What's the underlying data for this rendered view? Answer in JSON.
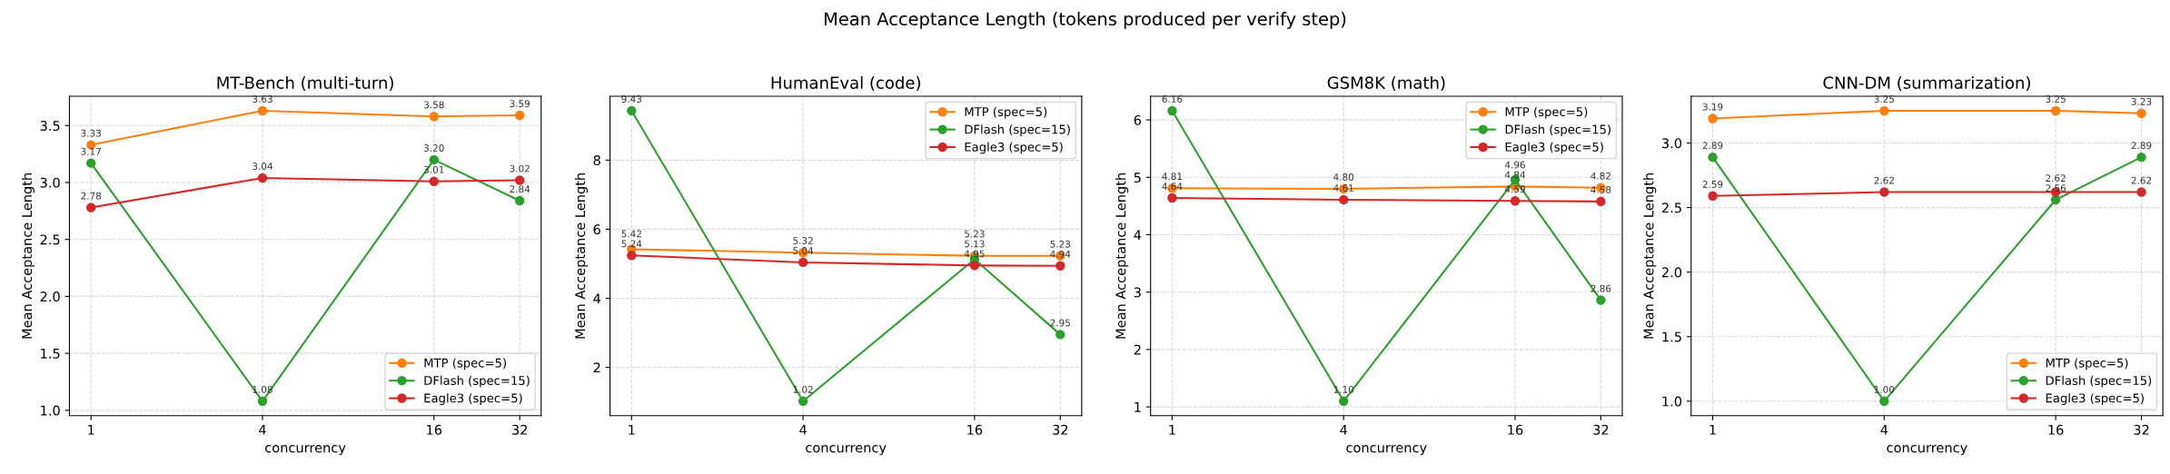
{
  "chart_data": [
    {
      "type": "line",
      "title": "MT-Bench (multi-turn)",
      "xlabel": "concurrency",
      "ylabel": "Mean Acceptance Length",
      "annotations": [
        "Mean Acceptance Length (tokens produced per verify step)"
      ],
      "x": [
        1,
        4,
        16,
        32
      ],
      "log": "x",
      "xlim": [
        0.84,
        38.05
      ],
      "xticks": [
        1,
        4,
        16,
        32
      ],
      "ylim": [
        0.9525,
        3.7575
      ],
      "yticks": [
        {
          "value": 1.0,
          "label": "1.0"
        },
        {
          "value": 1.5,
          "label": "1.5"
        },
        {
          "value": 2.0,
          "label": "2.0"
        },
        {
          "value": 2.5,
          "label": "2.5"
        },
        {
          "value": 3.0,
          "label": "3.0"
        },
        {
          "value": 3.5,
          "label": "3.5"
        }
      ],
      "grid": true,
      "legend": "lower right",
      "marker": "circle",
      "line_style": "solid",
      "series": [
        {
          "name": "MTP (spec=5)",
          "color": "#ff7f0e",
          "values": [
            3.33,
            3.63,
            3.58,
            3.59
          ],
          "value_labels": [
            "3.33",
            "3.63",
            "3.58",
            "3.59"
          ]
        },
        {
          "name": "DFlash (spec=15)",
          "color": "#2ca02c",
          "values": [
            3.17,
            1.08,
            3.2,
            2.84
          ],
          "value_labels": [
            "3.17",
            "1.08",
            "3.20",
            "2.84"
          ]
        },
        {
          "name": "Eagle3 (spec=5)",
          "color": "#d62728",
          "values": [
            2.78,
            3.04,
            3.01,
            3.02
          ],
          "value_labels": [
            "2.78",
            "3.04",
            "3.01",
            "3.02"
          ]
        }
      ]
    },
    {
      "type": "line",
      "title": "HumanEval (code)",
      "xlabel": "concurrency",
      "ylabel": "Mean Acceptance Length",
      "x": [
        1,
        4,
        16,
        32
      ],
      "log": "x",
      "xlim": [
        0.84,
        38.05
      ],
      "xticks": [
        1,
        4,
        16,
        32
      ],
      "ylim": [
        0.6,
        9.85
      ],
      "yticks": [
        2,
        4,
        6,
        8
      ],
      "grid": true,
      "legend": "upper right",
      "marker": "circle",
      "line_style": "solid",
      "series": [
        {
          "name": "MTP (spec=5)",
          "color": "#ff7f0e",
          "values": [
            5.42,
            5.32,
            5.23,
            5.23
          ],
          "value_labels": [
            "5.42",
            "5.32",
            "5.23",
            "5.23"
          ]
        },
        {
          "name": "DFlash (spec=15)",
          "color": "#2ca02c",
          "values": [
            9.43,
            1.02,
            5.13,
            2.95
          ],
          "value_labels": [
            "9.43",
            "1.02",
            "5.13",
            "2.95"
          ]
        },
        {
          "name": "Eagle3 (spec=5)",
          "color": "#d62728",
          "values": [
            5.24,
            5.04,
            4.95,
            4.94
          ],
          "value_labels": [
            "5.24",
            "5.04",
            "4.95",
            "4.94"
          ]
        }
      ]
    },
    {
      "type": "line",
      "title": "GSM8K (math)",
      "xlabel": "concurrency",
      "ylabel": "Mean Acceptance Length",
      "x": [
        1,
        4,
        16,
        32
      ],
      "log": "x",
      "xlim": [
        0.84,
        38.05
      ],
      "xticks": [
        1,
        4,
        16,
        32
      ],
      "ylim": [
        0.847,
        6.413
      ],
      "yticks": [
        1,
        2,
        3,
        4,
        5,
        6
      ],
      "grid": true,
      "legend": "upper right",
      "marker": "circle",
      "line_style": "solid",
      "series": [
        {
          "name": "MTP (spec=5)",
          "color": "#ff7f0e",
          "values": [
            4.81,
            4.8,
            4.84,
            4.82
          ],
          "value_labels": [
            "4.81",
            "4.80",
            "4.84",
            "4.82"
          ]
        },
        {
          "name": "DFlash (spec=15)",
          "color": "#2ca02c",
          "values": [
            6.16,
            1.1,
            4.96,
            2.86
          ],
          "value_labels": [
            "6.16",
            "1.10",
            "4.96",
            "2.86"
          ]
        },
        {
          "name": "Eagle3 (spec=5)",
          "color": "#d62728",
          "values": [
            4.64,
            4.61,
            4.59,
            4.58
          ],
          "value_labels": [
            "4.64",
            "4.61",
            "4.59",
            "4.58"
          ]
        }
      ]
    },
    {
      "type": "line",
      "title": "CNN-DM (summarization)",
      "xlabel": "concurrency",
      "ylabel": "Mean Acceptance Length",
      "x": [
        1,
        4,
        16,
        32
      ],
      "log": "x",
      "xlim": [
        0.84,
        38.05
      ],
      "xticks": [
        1,
        4,
        16,
        32
      ],
      "ylim": [
        0.8875,
        3.3625
      ],
      "yticks": [
        {
          "value": 1.0,
          "label": "1.0"
        },
        {
          "value": 1.5,
          "label": "1.5"
        },
        {
          "value": 2.0,
          "label": "2.0"
        },
        {
          "value": 2.5,
          "label": "2.5"
        },
        {
          "value": 3.0,
          "label": "3.0"
        }
      ],
      "grid": true,
      "legend": "lower right",
      "marker": "circle",
      "line_style": "solid",
      "series": [
        {
          "name": "MTP (spec=5)",
          "color": "#ff7f0e",
          "values": [
            3.19,
            3.25,
            3.25,
            3.23
          ],
          "value_labels": [
            "3.19",
            "3.25",
            "3.25",
            "3.23"
          ]
        },
        {
          "name": "DFlash (spec=15)",
          "color": "#2ca02c",
          "values": [
            2.89,
            1.0,
            2.56,
            2.89
          ],
          "value_labels": [
            "2.89",
            "1.00",
            "2.56",
            "2.89"
          ]
        },
        {
          "name": "Eagle3 (spec=5)",
          "color": "#d62728",
          "values": [
            2.59,
            2.62,
            2.62,
            2.62
          ],
          "value_labels": [
            "2.59",
            "2.62",
            "2.62",
            "2.62"
          ]
        }
      ]
    }
  ]
}
